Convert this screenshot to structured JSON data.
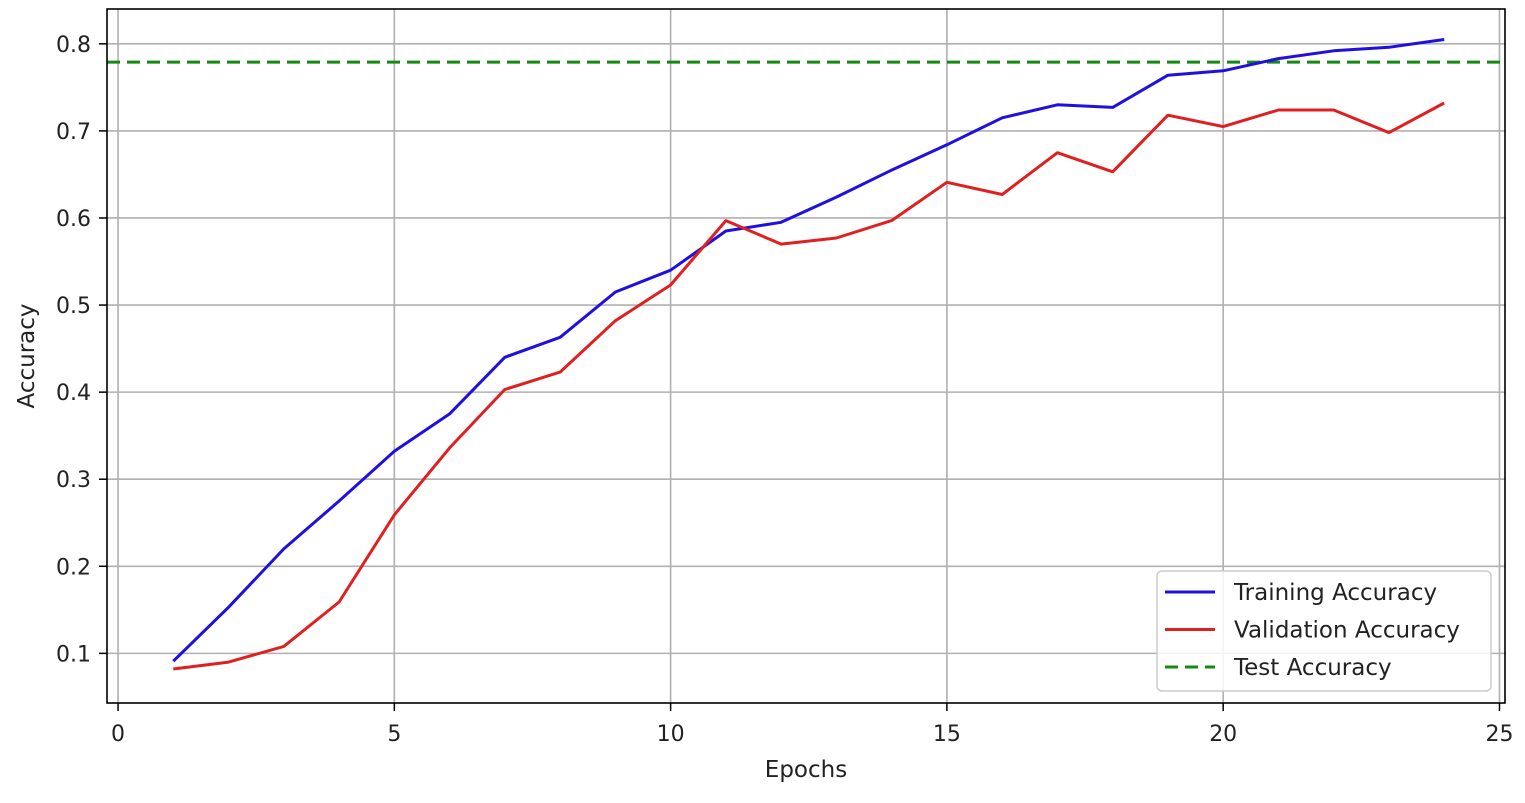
{
  "chart_data": {
    "type": "line",
    "title": "",
    "xlabel": "Epochs",
    "ylabel": "Accuracy",
    "xlim": [
      -0.2,
      25.1
    ],
    "ylim": [
      0.043,
      0.84
    ],
    "xticks": [
      0,
      5,
      10,
      15,
      20,
      25
    ],
    "yticks": [
      0.1,
      0.2,
      0.3,
      0.4,
      0.5,
      0.6,
      0.7,
      0.8
    ],
    "xtick_labels": [
      "0",
      "5",
      "10",
      "15",
      "20",
      "25"
    ],
    "ytick_labels": [
      "0.1",
      "0.2",
      "0.3",
      "0.4",
      "0.5",
      "0.6",
      "0.7",
      "0.8"
    ],
    "grid": true,
    "legend_position": "lower-right",
    "x": [
      1,
      2,
      3,
      4,
      5,
      6,
      7,
      8,
      9,
      10,
      11,
      12,
      13,
      14,
      15,
      16,
      17,
      18,
      19,
      20,
      21,
      22,
      23,
      24
    ],
    "series": [
      {
        "name": "Training Accuracy",
        "color": "#1f10e0",
        "style": "solid",
        "values": [
          0.091,
          0.153,
          0.22,
          0.275,
          0.332,
          0.375,
          0.44,
          0.463,
          0.515,
          0.54,
          0.585,
          0.595,
          0.624,
          0.655,
          0.684,
          0.715,
          0.73,
          0.727,
          0.764,
          0.769,
          0.783,
          0.792,
          0.796,
          0.805
        ]
      },
      {
        "name": "Validation Accuracy",
        "color": "#e02020",
        "style": "solid",
        "values": [
          0.082,
          0.09,
          0.108,
          0.159,
          0.259,
          0.336,
          0.403,
          0.423,
          0.482,
          0.523,
          0.597,
          0.57,
          0.577,
          0.597,
          0.641,
          0.627,
          0.675,
          0.653,
          0.718,
          0.705,
          0.724,
          0.724,
          0.698,
          0.732
        ]
      }
    ],
    "reference_lines": [
      {
        "name": "Test Accuracy",
        "color": "#138a13",
        "style": "dashed",
        "y": 0.779
      }
    ]
  }
}
